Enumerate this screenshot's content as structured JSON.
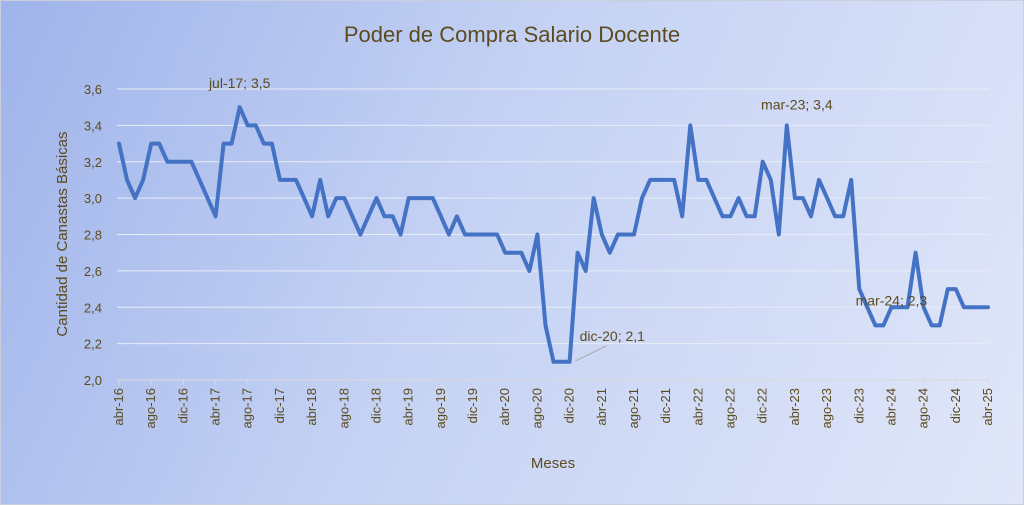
{
  "chart_data": {
    "type": "line",
    "title": "Poder de Compra Salario Docente",
    "xlabel": "Meses",
    "ylabel": "Cantidad de Canastas Básicas",
    "ylim": [
      2.0,
      3.6
    ],
    "yticks": [
      "2,0",
      "2,2",
      "2,4",
      "2,6",
      "2,8",
      "3,0",
      "3,2",
      "3,4",
      "3,6"
    ],
    "grid": "horizontal",
    "line_color": "#4472c4",
    "x_tick_labels": [
      "abr-16",
      "ago-16",
      "dic-16",
      "abr-17",
      "ago-17",
      "dic-17",
      "abr-18",
      "ago-18",
      "dic-18",
      "abr-19",
      "ago-19",
      "dic-19",
      "abr-20",
      "ago-20",
      "dic-20",
      "abr-21",
      "ago-21",
      "dic-21",
      "abr-22",
      "ago-22",
      "dic-22",
      "abr-23",
      "ago-23",
      "dic-23",
      "abr-24",
      "ago-24",
      "dic-24",
      "abr-25"
    ],
    "series": [
      {
        "x_start": "abr-16",
        "values": [
          3.3,
          3.1,
          3.0,
          3.1,
          3.3,
          3.3,
          3.2,
          3.2,
          3.2,
          3.2,
          3.1,
          3.0,
          2.9,
          3.3,
          3.3,
          3.5,
          3.4,
          3.4,
          3.3,
          3.3,
          3.1,
          3.1,
          3.1,
          3.0,
          2.9,
          3.1,
          2.9,
          3.0,
          3.0,
          2.9,
          2.8,
          2.9,
          3.0,
          2.9,
          2.9,
          2.8,
          3.0,
          3.0,
          3.0,
          3.0,
          2.9,
          2.8,
          2.9,
          2.8,
          2.8,
          2.8,
          2.8,
          2.8,
          2.7,
          2.7,
          2.7,
          2.6,
          2.8,
          2.3,
          2.1,
          2.1,
          2.1,
          2.7,
          2.6,
          3.0,
          2.8,
          2.7,
          2.8,
          2.8,
          2.8,
          3.0,
          3.1,
          3.1,
          3.1,
          3.1,
          2.9,
          3.4,
          3.1,
          3.1,
          3.0,
          2.9,
          2.9,
          3.0,
          2.9,
          2.9,
          3.2,
          3.1,
          2.8,
          3.4,
          3.0,
          3.0,
          2.9,
          3.1,
          3.0,
          2.9,
          2.9,
          3.1,
          2.5,
          2.4,
          2.3,
          2.3,
          2.4,
          2.4,
          2.4,
          2.7,
          2.4,
          2.3,
          2.3,
          2.5,
          2.5,
          2.4,
          2.4,
          2.4,
          2.4
        ]
      }
    ],
    "annotations": [
      {
        "text": "jul-17; 3,5",
        "index": 15
      },
      {
        "text": "dic-20; 2,1",
        "index": 56
      },
      {
        "text": "mar-23; 3,4",
        "index": 83
      },
      {
        "text": "mar-24; 2,3",
        "index": 95
      }
    ]
  }
}
